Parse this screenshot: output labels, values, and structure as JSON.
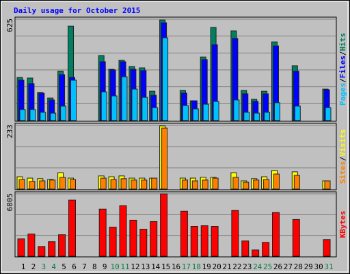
{
  "title": "Daily usage for October 2015",
  "chart_data": [
    {
      "type": "bar",
      "ylim": [
        0,
        625
      ],
      "yticks": [
        625
      ],
      "grid_divisions": 6,
      "separator": "/",
      "series": [
        {
          "name": "Hits",
          "color": "#008060",
          "values": [
            266,
            262,
            173,
            139,
            304,
            582,
            0,
            0,
            401,
            316,
            371,
            333,
            325,
            181,
            620,
            0,
            186,
            122,
            392,
            574,
            0,
            553,
            186,
            131,
            181,
            485,
            0,
            338,
            0,
            0,
            194
          ]
        },
        {
          "name": "Files",
          "color": "#0000ff",
          "values": [
            249,
            228,
            169,
            127,
            283,
            266,
            0,
            0,
            363,
            312,
            363,
            316,
            308,
            156,
            603,
            0,
            169,
            122,
            376,
            468,
            0,
            506,
            165,
            118,
            165,
            460,
            0,
            304,
            0,
            0,
            190
          ]
        },
        {
          "name": "Pages",
          "color": "#00c0ff",
          "values": [
            68,
            68,
            51,
            46,
            89,
            249,
            0,
            0,
            177,
            152,
            270,
            194,
            143,
            80,
            510,
            0,
            93,
            72,
            101,
            118,
            0,
            127,
            51,
            46,
            51,
            110,
            0,
            89,
            0,
            0,
            80
          ]
        }
      ]
    },
    {
      "type": "bar",
      "ylim": [
        0,
        233
      ],
      "yticks": [
        233
      ],
      "grid_divisions": 3,
      "separator": "/",
      "series": [
        {
          "name": "Visits",
          "color": "#ffff00",
          "values": [
            45,
            40,
            38,
            35,
            60,
            40,
            0,
            0,
            48,
            45,
            48,
            40,
            40,
            40,
            231,
            0,
            40,
            40,
            43,
            43,
            0,
            60,
            30,
            38,
            45,
            68,
            0,
            63,
            0,
            0,
            30
          ]
        },
        {
          "name": "Sites",
          "color": "#ff8000",
          "values": [
            35,
            28,
            30,
            33,
            43,
            35,
            0,
            0,
            40,
            35,
            38,
            33,
            33,
            40,
            223,
            0,
            33,
            30,
            33,
            40,
            0,
            43,
            25,
            33,
            35,
            55,
            0,
            50,
            0,
            0,
            30
          ]
        }
      ]
    },
    {
      "type": "bar",
      "ylim": [
        0,
        6005
      ],
      "yticks": [
        6005
      ],
      "grid_divisions": 3,
      "categories": [
        "1",
        "2",
        "3",
        "4",
        "5",
        "6",
        "7",
        "8",
        "9",
        "10",
        "11",
        "12",
        "13",
        "14",
        "15",
        "16",
        "17",
        "18",
        "19",
        "20",
        "21",
        "22",
        "23",
        "24",
        "25",
        "26",
        "27",
        "28",
        "29",
        "30",
        "31"
      ],
      "category_colors": [
        "#000000",
        "#000000",
        "#008040",
        "#008040",
        "#000000",
        "#000000",
        "#000000",
        "#000000",
        "#000000",
        "#008040",
        "#008040",
        "#000000",
        "#000000",
        "#000000",
        "#000000",
        "#000000",
        "#008040",
        "#008040",
        "#000000",
        "#000000",
        "#000000",
        "#000000",
        "#000000",
        "#008040",
        "#008040",
        "#000000",
        "#000000",
        "#000000",
        "#000000",
        "#000000",
        "#008040"
      ],
      "series": [
        {
          "name": "KBytes",
          "color": "#ff0000",
          "values": [
            1668,
            2135,
            934,
            1401,
            2068,
            5404,
            0,
            0,
            4537,
            2802,
            4870,
            3469,
            2602,
            3336,
            6005,
            0,
            4337,
            2869,
            2936,
            2869,
            0,
            4404,
            1468,
            600,
            1334,
            4204,
            0,
            3536,
            0,
            0,
            1601
          ]
        }
      ]
    }
  ]
}
